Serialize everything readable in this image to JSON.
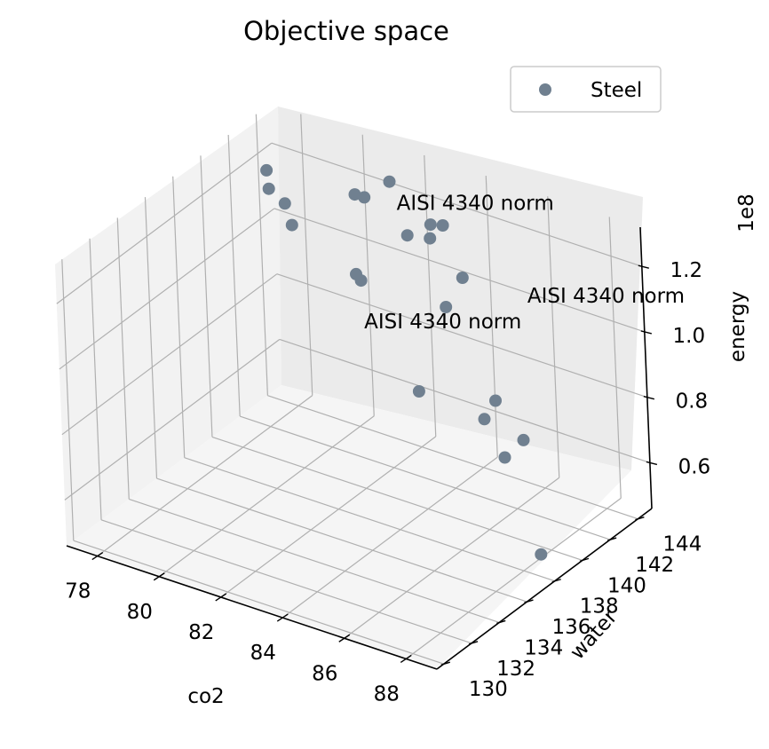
{
  "chart_data": {
    "type": "scatter",
    "projection": "3d",
    "title": "Objective space",
    "xlabel": "co2",
    "ylabel": "water",
    "zlabel": "energy",
    "z_offset_label": "1e8",
    "x_ticks": [
      "78",
      "80",
      "82",
      "84",
      "86",
      "88"
    ],
    "y_ticks": [
      "130",
      "132",
      "134",
      "136",
      "138",
      "140",
      "142",
      "144"
    ],
    "z_ticks": [
      "0.6",
      "0.8",
      "1.0",
      "1.2"
    ],
    "grid": true,
    "legend": {
      "position": "top-right",
      "entries": [
        "Steel"
      ]
    },
    "series": [
      {
        "name": "Steel",
        "color": "#708090",
        "points": [
          {
            "x": 77.5,
            "y": 143.5,
            "z": 1.18
          },
          {
            "x": 77.6,
            "y": 143.4,
            "z": 1.13
          },
          {
            "x": 78.2,
            "y": 143.2,
            "z": 1.11
          },
          {
            "x": 78.5,
            "y": 143.0,
            "z": 1.06
          },
          {
            "x": 80.4,
            "y": 143.3,
            "z": 0.96
          },
          {
            "x": 80.6,
            "y": 143.2,
            "z": 0.95
          },
          {
            "x": 79.9,
            "y": 144.5,
            "z": 1.15
          },
          {
            "x": 80.3,
            "y": 144.3,
            "z": 1.16
          },
          {
            "x": 81.1,
            "y": 144.4,
            "z": 1.23
          },
          {
            "x": 81.9,
            "y": 143.8,
            "z": 1.11
          },
          {
            "x": 82.3,
            "y": 144.6,
            "z": 1.13
          },
          {
            "x": 82.5,
            "y": 144.1,
            "z": 1.11
          },
          {
            "x": 82.7,
            "y": 144.6,
            "z": 1.14
          },
          {
            "x": 83.4,
            "y": 143.1,
            "z": 0.96
          },
          {
            "x": 83.2,
            "y": 141.4,
            "z": 0.75
          },
          {
            "x": 83.7,
            "y": 143.7,
            "z": 1.04
          },
          {
            "x": 85.5,
            "y": 141.0,
            "z": 0.75
          },
          {
            "x": 85.7,
            "y": 141.4,
            "z": 0.8
          },
          {
            "x": 86.4,
            "y": 140.4,
            "z": 0.68
          },
          {
            "x": 86.8,
            "y": 140.9,
            "z": 0.73
          },
          {
            "x": 88.4,
            "y": 138.4,
            "z": 0.51
          }
        ]
      }
    ],
    "annotations": [
      {
        "text": "AISI 4340 norm",
        "x": 81.3,
        "y": 144.4,
        "z": 1.15
      },
      {
        "text": "AISI 4340 norm",
        "x": 85.8,
        "y": 143.7,
        "z": 1.03
      },
      {
        "text": "AISI 4340 norm",
        "x": 81.2,
        "y": 142.0,
        "z": 0.86
      }
    ]
  }
}
